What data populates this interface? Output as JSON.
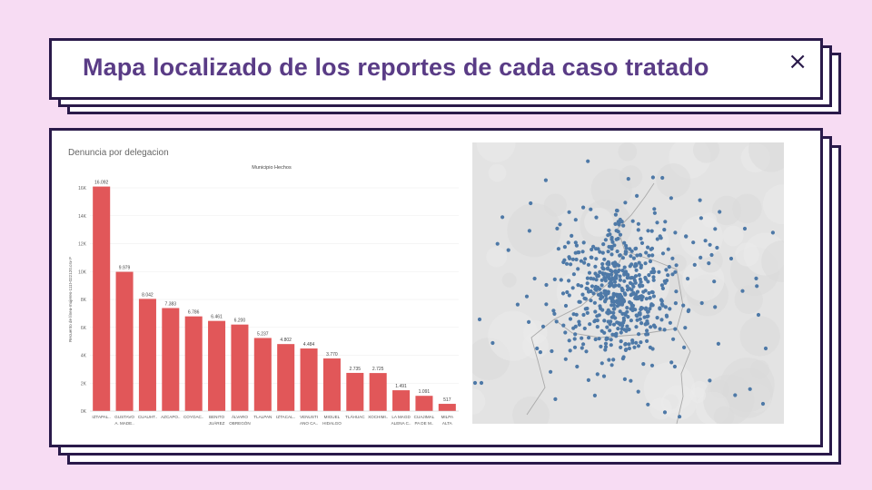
{
  "slide": {
    "title": "Mapa localizado de los reportes de cada caso tratado",
    "close_icon": "×"
  },
  "chart": {
    "panel_title": "Denuncia por delegacion"
  },
  "chart_data": {
    "type": "bar",
    "title": "Municipio Hechos",
    "ylabel": "Recuento de línea-mujeres-111t-022120.csv F",
    "xlabel": "",
    "ylim": [
      0,
      16000
    ],
    "y_ticks": [
      "0K",
      "2K",
      "4K",
      "6K",
      "8K",
      "10K",
      "12K",
      "14K",
      "16K"
    ],
    "bar_color": "#e15759",
    "categories": [
      [
        "IZTAPAL.."
      ],
      [
        "GUSTAVO",
        "A. MADE.."
      ],
      [
        "CUAUHT.."
      ],
      [
        "AZCAPO.."
      ],
      [
        "COYOAC.."
      ],
      [
        "BENITO",
        "JUÁREZ"
      ],
      [
        "ÁLVARO",
        "OBREGÓN"
      ],
      [
        "TLALPAN"
      ],
      [
        "IZTACAL.."
      ],
      [
        "VENUSTI",
        "ANO CA.."
      ],
      [
        "MIGUEL",
        "HIDALGO"
      ],
      [
        "TLÁHUAC"
      ],
      [
        "XOCHIMI.."
      ],
      [
        "LA MAGD",
        "ALENA C.."
      ],
      [
        "CUAJIMAL",
        "PA DE M.."
      ],
      [
        "MILPA",
        "ALTA"
      ]
    ],
    "values": [
      16092,
      9979,
      8042,
      7383,
      6786,
      6461,
      6200,
      5237,
      4802,
      4484,
      3770,
      2735,
      2725,
      1491,
      1091,
      517
    ],
    "data_labels": [
      "16.092",
      "9.979",
      "8.042",
      "7.383",
      "6.786",
      "6.461",
      "6.200",
      "5.237",
      "4.802",
      "4.484",
      "3.770",
      "2.735",
      "2.725",
      "1.491",
      "1.091",
      "517"
    ]
  },
  "map": {
    "point_color": "#4e79a7",
    "background": "#e3e3e3"
  }
}
